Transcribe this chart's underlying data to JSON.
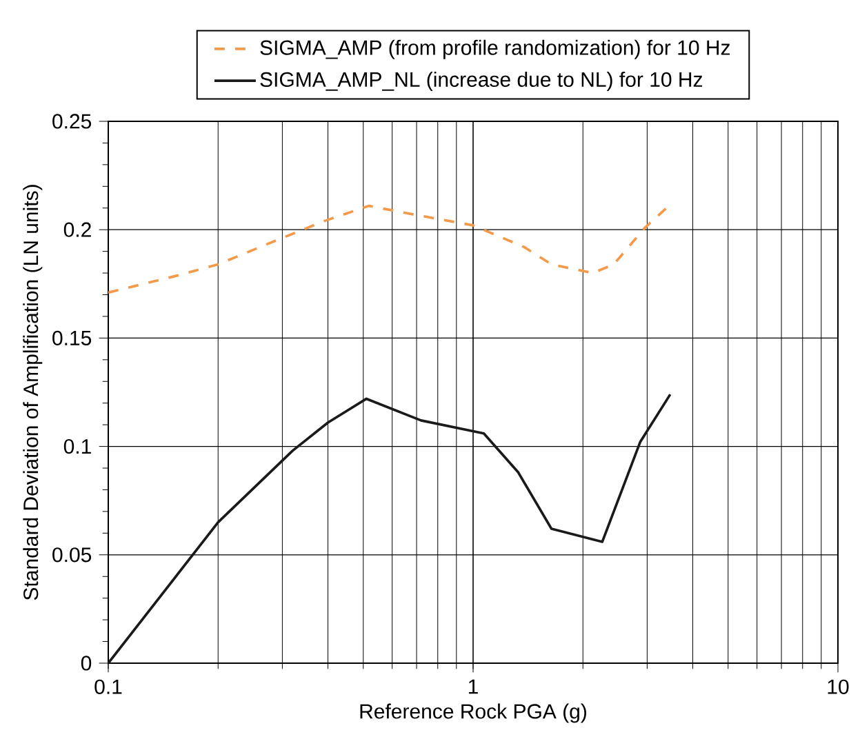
{
  "chart_data": {
    "type": "line",
    "xlabel": "Reference Rock PGA (g)",
    "ylabel": "Standard Deviation of Amplification (LN units)",
    "log": "x",
    "xlim": [
      0.1,
      10
    ],
    "xticks": [
      0.1,
      1,
      10
    ],
    "ylim": [
      0,
      0.25
    ],
    "yticks": [
      0,
      0.05,
      0.1,
      0.15,
      0.2,
      0.25
    ],
    "grid": true,
    "legend": "top",
    "marker": "none",
    "series": [
      {
        "name": "SIGMA_AMP (from profile randomization) for 10 Hz",
        "color": "#f39a4a",
        "line_style": "dashed",
        "x": [
          0.1,
          0.156,
          0.2,
          0.288,
          0.391,
          0.518,
          0.688,
          1,
          1.38,
          1.64,
          2.13,
          2.43,
          2.96,
          3.44
        ],
        "values": [
          0.171,
          0.179,
          0.184,
          0.195,
          0.204,
          0.211,
          0.207,
          0.202,
          0.192,
          0.184,
          0.18,
          0.184,
          0.201,
          0.211
        ]
      },
      {
        "name": "SIGMA_AMP_NL (increase due to NL) for 10 Hz",
        "color": "#1a1a1a",
        "line_style": "solid",
        "x": [
          0.1,
          0.2,
          0.32,
          0.4,
          0.51,
          0.72,
          1.07,
          1.33,
          1.64,
          2.26,
          2.87,
          3.47
        ],
        "values": [
          0,
          0.065,
          0.098,
          0.111,
          0.122,
          0.112,
          0.106,
          0.088,
          0.062,
          0.056,
          0.102,
          0.124
        ]
      }
    ]
  }
}
